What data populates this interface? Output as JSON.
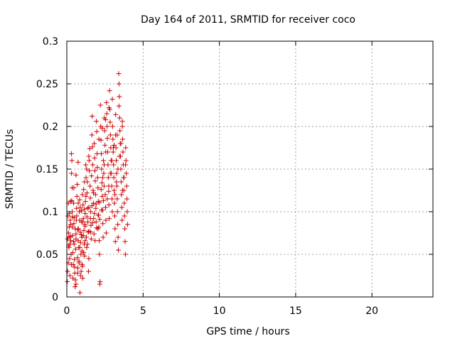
{
  "chart_data": {
    "type": "scatter",
    "title": "Day 164 of 2011, SRMTID for receiver coco",
    "xlabel": "GPS time / hours",
    "ylabel": "SRMTID / TECUs",
    "xlim": [
      0,
      24
    ],
    "ylim": [
      0,
      0.3
    ],
    "x_ticks": [
      0,
      5,
      10,
      15,
      20
    ],
    "x_tick_labels": [
      "0",
      "5",
      "10",
      "15",
      "20"
    ],
    "y_ticks": [
      0,
      0.05,
      0.1,
      0.15,
      0.2,
      0.25,
      0.3
    ],
    "y_tick_labels": [
      "0",
      "0.05",
      "0.1",
      "0.15",
      "0.2",
      "0.25",
      "0.3"
    ],
    "grid": true,
    "marker": "plus",
    "color": "#cc0000",
    "series": [
      {
        "name": "SRMTID",
        "points": [
          [
            0.03,
            0.018
          ],
          [
            0.05,
            0.03
          ],
          [
            0.05,
            0.068
          ],
          [
            0.08,
            0.095
          ],
          [
            0.1,
            0.11
          ],
          [
            0.12,
            0.075
          ],
          [
            0.14,
            0.058
          ],
          [
            0.16,
            0.082
          ],
          [
            0.18,
            0.045
          ],
          [
            0.2,
            0.062
          ],
          [
            0.22,
            0.09
          ],
          [
            0.24,
            0.112
          ],
          [
            0.26,
            0.066
          ],
          [
            0.28,
            0.05
          ],
          [
            0.3,
            0.168
          ],
          [
            0.31,
            0.145
          ],
          [
            0.33,
            0.16
          ],
          [
            0.35,
            0.128
          ],
          [
            0.36,
            0.094
          ],
          [
            0.38,
            0.072
          ],
          [
            0.4,
            0.052
          ],
          [
            0.42,
            0.038
          ],
          [
            0.44,
            0.11
          ],
          [
            0.46,
            0.086
          ],
          [
            0.48,
            0.062
          ],
          [
            0.5,
            0.044
          ],
          [
            0.52,
            0.028
          ],
          [
            0.54,
            0.012
          ],
          [
            0.56,
            0.02
          ],
          [
            0.58,
            0.056
          ],
          [
            0.6,
            0.074
          ],
          [
            0.62,
            0.09
          ],
          [
            0.64,
            0.104
          ],
          [
            0.66,
            0.118
          ],
          [
            0.68,
            0.132
          ],
          [
            0.7,
            0.046
          ],
          [
            0.72,
            0.034
          ],
          [
            0.74,
            0.066
          ],
          [
            0.76,
            0.08
          ],
          [
            0.78,
            0.058
          ],
          [
            0.8,
            0.04
          ],
          [
            0.82,
            0.1
          ],
          [
            0.84,
            0.114
          ],
          [
            0.86,
            0.005
          ],
          [
            0.88,
            0.076
          ],
          [
            0.9,
            0.064
          ],
          [
            0.92,
            0.05
          ],
          [
            0.94,
            0.03
          ],
          [
            0.96,
            0.088
          ],
          [
            0.98,
            0.07
          ],
          [
            1.0,
            0.054
          ],
          [
            1.02,
            0.036
          ],
          [
            1.04,
            0.022
          ],
          [
            1.06,
            0.108
          ],
          [
            1.08,
            0.092
          ],
          [
            1.1,
            0.126
          ],
          [
            1.12,
            0.078
          ],
          [
            1.14,
            0.062
          ],
          [
            1.16,
            0.048
          ],
          [
            1.18,
            0.085
          ],
          [
            1.2,
            0.098
          ],
          [
            1.22,
            0.112
          ],
          [
            1.24,
            0.155
          ],
          [
            1.26,
            0.14
          ],
          [
            1.28,
            0.07
          ],
          [
            1.3,
            0.058
          ],
          [
            1.32,
            0.122
          ],
          [
            1.34,
            0.135
          ],
          [
            1.36,
            0.104
          ],
          [
            1.38,
            0.088
          ],
          [
            1.4,
            0.076
          ],
          [
            1.42,
            0.03
          ],
          [
            1.44,
            0.045
          ],
          [
            1.46,
            0.16
          ],
          [
            1.48,
            0.148
          ],
          [
            1.5,
            0.174
          ],
          [
            1.52,
            0.13
          ],
          [
            1.54,
            0.116
          ],
          [
            1.56,
            0.1
          ],
          [
            1.58,
            0.084
          ],
          [
            1.6,
            0.068
          ],
          [
            1.62,
            0.142
          ],
          [
            1.64,
            0.19
          ],
          [
            1.66,
            0.212
          ],
          [
            1.68,
            0.176
          ],
          [
            1.7,
            0.155
          ],
          [
            1.72,
            0.125
          ],
          [
            1.74,
            0.11
          ],
          [
            1.76,
            0.092
          ],
          [
            1.78,
            0.074
          ],
          [
            1.8,
            0.18
          ],
          [
            1.82,
            0.163
          ],
          [
            1.84,
            0.148
          ],
          [
            1.86,
            0.136
          ],
          [
            1.88,
            0.12
          ],
          [
            1.9,
            0.104
          ],
          [
            1.92,
            0.088
          ],
          [
            1.94,
            0.206
          ],
          [
            1.96,
            0.194
          ],
          [
            1.98,
            0.168
          ],
          [
            2.0,
            0.152
          ],
          [
            2.02,
            0.14
          ],
          [
            2.04,
            0.128
          ],
          [
            2.06,
            0.112
          ],
          [
            2.08,
            0.096
          ],
          [
            2.1,
            0.082
          ],
          [
            2.12,
            0.066
          ],
          [
            2.14,
            0.05
          ],
          [
            2.16,
            0.015
          ],
          [
            2.18,
            0.018
          ],
          [
            2.2,
            0.225
          ],
          [
            2.22,
            0.2
          ],
          [
            2.24,
            0.184
          ],
          [
            2.26,
            0.168
          ],
          [
            2.28,
            0.15
          ],
          [
            2.3,
            0.134
          ],
          [
            2.32,
            0.118
          ],
          [
            2.34,
            0.102
          ],
          [
            2.36,
            0.086
          ],
          [
            2.38,
            0.07
          ],
          [
            2.4,
            0.16
          ],
          [
            2.42,
            0.145
          ],
          [
            2.44,
            0.13
          ],
          [
            2.46,
            0.21
          ],
          [
            2.48,
            0.195
          ],
          [
            2.5,
            0.178
          ],
          [
            2.52,
            0.12
          ],
          [
            2.54,
            0.105
          ],
          [
            2.56,
            0.09
          ],
          [
            2.58,
            0.075
          ],
          [
            2.6,
            0.228
          ],
          [
            2.62,
            0.215
          ],
          [
            2.64,
            0.2
          ],
          [
            2.66,
            0.186
          ],
          [
            2.68,
            0.17
          ],
          [
            2.7,
            0.155
          ],
          [
            2.72,
            0.14
          ],
          [
            2.74,
            0.124
          ],
          [
            2.76,
            0.108
          ],
          [
            2.78,
            0.092
          ],
          [
            2.8,
            0.242
          ],
          [
            2.82,
            0.22
          ],
          [
            2.84,
            0.205
          ],
          [
            2.86,
            0.19
          ],
          [
            2.88,
            0.175
          ],
          [
            2.9,
            0.16
          ],
          [
            2.92,
            0.145
          ],
          [
            2.94,
            0.13
          ],
          [
            2.96,
            0.115
          ],
          [
            2.98,
            0.1
          ],
          [
            3.0,
            0.2
          ],
          [
            3.02,
            0.185
          ],
          [
            3.04,
            0.17
          ],
          [
            3.06,
            0.155
          ],
          [
            3.08,
            0.14
          ],
          [
            3.1,
            0.125
          ],
          [
            3.12,
            0.11
          ],
          [
            3.14,
            0.095
          ],
          [
            3.16,
            0.08
          ],
          [
            3.18,
            0.065
          ],
          [
            3.2,
            0.19
          ],
          [
            3.22,
            0.175
          ],
          [
            3.24,
            0.16
          ],
          [
            3.26,
            0.145
          ],
          [
            3.28,
            0.13
          ],
          [
            3.3,
            0.115
          ],
          [
            3.32,
            0.1
          ],
          [
            3.34,
            0.085
          ],
          [
            3.36,
            0.07
          ],
          [
            3.38,
            0.055
          ],
          [
            3.4,
            0.262
          ],
          [
            3.42,
            0.25
          ],
          [
            3.44,
            0.235
          ],
          [
            3.46,
            0.21
          ],
          [
            3.48,
            0.195
          ],
          [
            3.5,
            0.18
          ],
          [
            3.52,
            0.165
          ],
          [
            3.54,
            0.15
          ],
          [
            3.56,
            0.135
          ],
          [
            3.58,
            0.12
          ],
          [
            3.6,
            0.105
          ],
          [
            3.62,
            0.09
          ],
          [
            3.64,
            0.2
          ],
          [
            3.66,
            0.185
          ],
          [
            3.68,
            0.17
          ],
          [
            3.7,
            0.155
          ],
          [
            3.72,
            0.14
          ],
          [
            3.74,
            0.125
          ],
          [
            3.76,
            0.11
          ],
          [
            3.78,
            0.095
          ],
          [
            3.8,
            0.08
          ],
          [
            3.82,
            0.065
          ],
          [
            3.84,
            0.05
          ],
          [
            3.86,
            0.175
          ],
          [
            3.88,
            0.16
          ],
          [
            3.9,
            0.145
          ],
          [
            3.92,
            0.13
          ],
          [
            3.94,
            0.115
          ],
          [
            3.96,
            0.1
          ],
          [
            3.98,
            0.085
          ],
          [
            0.15,
            0.07
          ],
          [
            0.25,
            0.085
          ],
          [
            0.35,
            0.1
          ],
          [
            0.45,
            0.065
          ],
          [
            0.55,
            0.08
          ],
          [
            0.65,
            0.095
          ],
          [
            0.75,
            0.11
          ],
          [
            0.85,
            0.058
          ],
          [
            0.95,
            0.073
          ],
          [
            1.05,
            0.088
          ],
          [
            1.15,
            0.103
          ],
          [
            1.25,
            0.118
          ],
          [
            1.35,
            0.062
          ],
          [
            1.45,
            0.077
          ],
          [
            1.55,
            0.092
          ],
          [
            1.65,
            0.107
          ],
          [
            1.75,
            0.122
          ],
          [
            1.85,
            0.066
          ],
          [
            1.95,
            0.081
          ],
          [
            2.05,
            0.096
          ],
          [
            2.15,
            0.111
          ],
          [
            2.25,
            0.126
          ],
          [
            2.35,
            0.14
          ],
          [
            2.45,
            0.155
          ],
          [
            2.55,
            0.17
          ],
          [
            2.65,
            0.115
          ],
          [
            2.75,
            0.13
          ],
          [
            2.85,
            0.145
          ],
          [
            2.95,
            0.16
          ],
          [
            3.05,
            0.175
          ],
          [
            3.15,
            0.12
          ],
          [
            3.25,
            0.135
          ],
          [
            3.35,
            0.15
          ],
          [
            3.45,
            0.165
          ],
          [
            3.55,
            0.18
          ],
          [
            3.65,
            0.125
          ],
          [
            3.75,
            0.14
          ],
          [
            3.85,
            0.155
          ],
          [
            0.1,
            0.04
          ],
          [
            0.2,
            0.025
          ],
          [
            0.3,
            0.038
          ],
          [
            0.4,
            0.022
          ],
          [
            0.5,
            0.035
          ],
          [
            0.6,
            0.015
          ],
          [
            0.7,
            0.028
          ],
          [
            0.8,
            0.042
          ],
          [
            0.9,
            0.025
          ],
          [
            1.0,
            0.038
          ],
          [
            1.1,
            0.052
          ],
          [
            1.2,
            0.066
          ],
          [
            0.12,
            0.06
          ],
          [
            0.24,
            0.071
          ],
          [
            0.36,
            0.082
          ],
          [
            0.48,
            0.093
          ],
          [
            0.6,
            0.068
          ],
          [
            0.72,
            0.079
          ],
          [
            0.84,
            0.09
          ],
          [
            0.96,
            0.101
          ],
          [
            1.08,
            0.072
          ],
          [
            1.2,
            0.083
          ],
          [
            1.32,
            0.094
          ],
          [
            1.44,
            0.105
          ],
          [
            1.56,
            0.076
          ],
          [
            1.68,
            0.087
          ],
          [
            1.8,
            0.098
          ],
          [
            1.92,
            0.109
          ],
          [
            2.04,
            0.08
          ],
          [
            2.16,
            0.091
          ],
          [
            2.28,
            0.102
          ],
          [
            2.4,
            0.113
          ],
          [
            0.18,
            0.098
          ],
          [
            0.32,
            0.113
          ],
          [
            0.46,
            0.128
          ],
          [
            0.6,
            0.143
          ],
          [
            0.74,
            0.158
          ],
          [
            0.88,
            0.105
          ],
          [
            1.02,
            0.12
          ],
          [
            1.16,
            0.135
          ],
          [
            1.3,
            0.15
          ],
          [
            1.44,
            0.165
          ],
          [
            2.1,
            0.185
          ],
          [
            2.32,
            0.198
          ],
          [
            2.54,
            0.208
          ],
          [
            2.76,
            0.222
          ],
          [
            2.98,
            0.232
          ],
          [
            3.2,
            0.214
          ],
          [
            3.42,
            0.224
          ],
          [
            3.64,
            0.206
          ],
          [
            3.3,
            0.19
          ],
          [
            3.1,
            0.178
          ]
        ]
      }
    ]
  }
}
